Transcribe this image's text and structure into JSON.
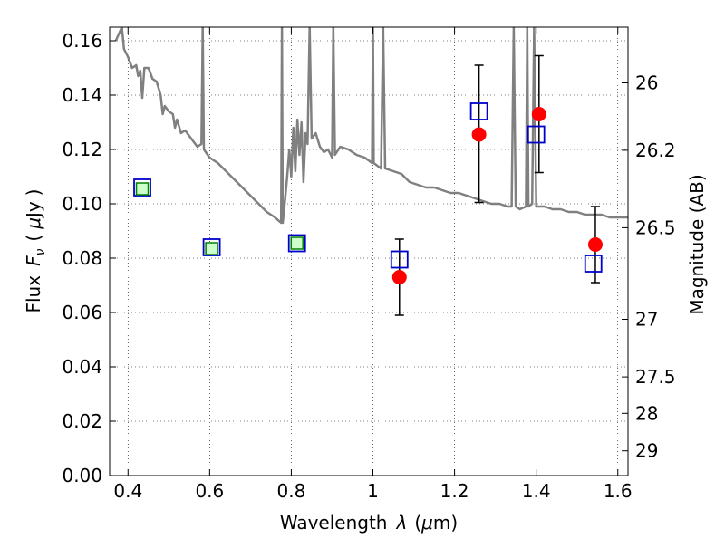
{
  "chart_data": {
    "type": "scatter",
    "title": "",
    "xlabel_parts": {
      "text1": "Wavelength",
      "sym": "λ",
      "open": "(",
      "mu": "μ",
      "unit": "m)"
    },
    "ylabel_parts": {
      "text1": "Flux",
      "sym": "F",
      "sub": "ν",
      "open": "(",
      "mu": "μ",
      "unit": "Jy",
      "close": ")"
    },
    "y2label": "Magnitude (AB)",
    "xlim": [
      0.355,
      1.625
    ],
    "ylim": [
      0.0,
      0.165
    ],
    "xticks": [
      0.4,
      0.6,
      0.8,
      1.0,
      1.2,
      1.4,
      1.6
    ],
    "xtick_labels": [
      "0.4",
      "0.6",
      "0.8",
      "1",
      "1.2",
      "1.4",
      "1.6"
    ],
    "yticks": [
      0.0,
      0.02,
      0.04,
      0.06,
      0.08,
      0.1,
      0.12,
      0.14,
      0.16
    ],
    "ytick_labels": [
      "0.00",
      "0.02",
      "0.04",
      "0.06",
      "0.08",
      "0.10",
      "0.12",
      "0.14",
      "0.16"
    ],
    "y2ticks": [
      {
        "flux": 0.1445,
        "label": "26"
      },
      {
        "flux": 0.1197,
        "label": "26.2"
      },
      {
        "flux": 0.0912,
        "label": "26.5"
      },
      {
        "flux": 0.0575,
        "label": "27"
      },
      {
        "flux": 0.0363,
        "label": "27.5"
      },
      {
        "flux": 0.0229,
        "label": "28"
      },
      {
        "flux": 0.0091,
        "label": "29"
      }
    ],
    "grid": true,
    "colors": {
      "model": "#808080",
      "observed": "#ff0000",
      "model_band_flux": "#0000cc",
      "upper_marker_edge": "#008000",
      "upper_marker_fill": "#ccffcc",
      "errorbar": "#000000"
    },
    "series": [
      {
        "marker": "filled-circle",
        "points": [
          {
            "x": 1.065,
            "y": 0.073,
            "yerr_low": 0.059,
            "yerr_high": 0.087
          },
          {
            "x": 1.26,
            "y": 0.1255,
            "yerr_low": 0.1005,
            "yerr_high": 0.151
          },
          {
            "x": 1.407,
            "y": 0.133,
            "yerr_low": 0.1115,
            "yerr_high": 0.1545
          },
          {
            "x": 1.545,
            "y": 0.085,
            "yerr_low": 0.071,
            "yerr_high": 0.099
          }
        ]
      },
      {
        "marker": "open-square",
        "points": [
          {
            "x": 0.435,
            "y": 0.106
          },
          {
            "x": 0.605,
            "y": 0.084
          },
          {
            "x": 0.814,
            "y": 0.0855
          },
          {
            "x": 1.065,
            "y": 0.0795
          },
          {
            "x": 1.26,
            "y": 0.134
          },
          {
            "x": 1.4,
            "y": 0.1255
          },
          {
            "x": 1.54,
            "y": 0.078
          }
        ]
      },
      {
        "marker": "small-square",
        "points": [
          {
            "x": 0.435,
            "y": 0.1055
          },
          {
            "x": 0.605,
            "y": 0.0835
          },
          {
            "x": 0.814,
            "y": 0.0855
          }
        ]
      }
    ],
    "model_curve": [
      [
        0.37,
        0.16
      ],
      [
        0.385,
        0.165
      ],
      [
        0.39,
        0.157
      ],
      [
        0.4,
        0.154
      ],
      [
        0.41,
        0.15
      ],
      [
        0.42,
        0.151
      ],
      [
        0.425,
        0.147
      ],
      [
        0.43,
        0.149
      ],
      [
        0.435,
        0.139
      ],
      [
        0.44,
        0.15
      ],
      [
        0.45,
        0.15
      ],
      [
        0.46,
        0.146
      ],
      [
        0.47,
        0.145
      ],
      [
        0.48,
        0.14
      ],
      [
        0.485,
        0.133
      ],
      [
        0.49,
        0.136
      ],
      [
        0.5,
        0.134
      ],
      [
        0.51,
        0.133
      ],
      [
        0.515,
        0.128
      ],
      [
        0.52,
        0.131
      ],
      [
        0.53,
        0.126
      ],
      [
        0.54,
        0.127
      ],
      [
        0.55,
        0.125
      ],
      [
        0.56,
        0.123
      ],
      [
        0.57,
        0.121
      ],
      [
        0.58,
        0.122
      ],
      [
        0.583,
        0.165
      ],
      [
        0.586,
        0.12
      ],
      [
        0.6,
        0.117
      ],
      [
        0.62,
        0.115
      ],
      [
        0.64,
        0.112
      ],
      [
        0.66,
        0.109
      ],
      [
        0.68,
        0.106
      ],
      [
        0.7,
        0.103
      ],
      [
        0.72,
        0.1
      ],
      [
        0.74,
        0.097
      ],
      [
        0.76,
        0.095
      ],
      [
        0.775,
        0.093
      ],
      [
        0.777,
        0.165
      ],
      [
        0.779,
        0.093
      ],
      [
        0.785,
        0.102
      ],
      [
        0.79,
        0.11
      ],
      [
        0.795,
        0.12
      ],
      [
        0.8,
        0.11
      ],
      [
        0.805,
        0.128
      ],
      [
        0.81,
        0.112
      ],
      [
        0.815,
        0.131
      ],
      [
        0.82,
        0.118
      ],
      [
        0.825,
        0.13
      ],
      [
        0.83,
        0.108
      ],
      [
        0.835,
        0.126
      ],
      [
        0.84,
        0.122
      ],
      [
        0.845,
        0.165
      ],
      [
        0.85,
        0.124
      ],
      [
        0.86,
        0.126
      ],
      [
        0.87,
        0.121
      ],
      [
        0.88,
        0.119
      ],
      [
        0.89,
        0.12
      ],
      [
        0.9,
        0.117
      ],
      [
        0.903,
        0.165
      ],
      [
        0.907,
        0.118
      ],
      [
        0.92,
        0.121
      ],
      [
        0.94,
        0.12
      ],
      [
        0.96,
        0.118
      ],
      [
        0.98,
        0.117
      ],
      [
        0.998,
        0.115
      ],
      [
        1.0,
        0.165
      ],
      [
        1.002,
        0.115
      ],
      [
        1.02,
        0.113
      ],
      [
        1.025,
        0.165
      ],
      [
        1.03,
        0.113
      ],
      [
        1.05,
        0.112
      ],
      [
        1.07,
        0.111
      ],
      [
        1.09,
        0.108
      ],
      [
        1.11,
        0.107
      ],
      [
        1.13,
        0.106
      ],
      [
        1.15,
        0.106
      ],
      [
        1.17,
        0.105
      ],
      [
        1.19,
        0.104
      ],
      [
        1.21,
        0.104
      ],
      [
        1.23,
        0.103
      ],
      [
        1.25,
        0.102
      ],
      [
        1.27,
        0.101
      ],
      [
        1.29,
        0.1
      ],
      [
        1.31,
        0.1
      ],
      [
        1.33,
        0.099
      ],
      [
        1.34,
        0.099
      ],
      [
        1.345,
        0.165
      ],
      [
        1.35,
        0.099
      ],
      [
        1.36,
        0.098
      ],
      [
        1.375,
        0.099
      ],
      [
        1.378,
        0.165
      ],
      [
        1.381,
        0.099
      ],
      [
        1.39,
        0.1
      ],
      [
        1.395,
        0.165
      ],
      [
        1.4,
        0.099
      ],
      [
        1.42,
        0.099
      ],
      [
        1.44,
        0.098
      ],
      [
        1.46,
        0.098
      ],
      [
        1.48,
        0.097
      ],
      [
        1.5,
        0.097
      ],
      [
        1.52,
        0.096
      ],
      [
        1.54,
        0.096
      ],
      [
        1.56,
        0.096
      ],
      [
        1.58,
        0.095
      ],
      [
        1.6,
        0.095
      ],
      [
        1.625,
        0.095
      ]
    ]
  }
}
